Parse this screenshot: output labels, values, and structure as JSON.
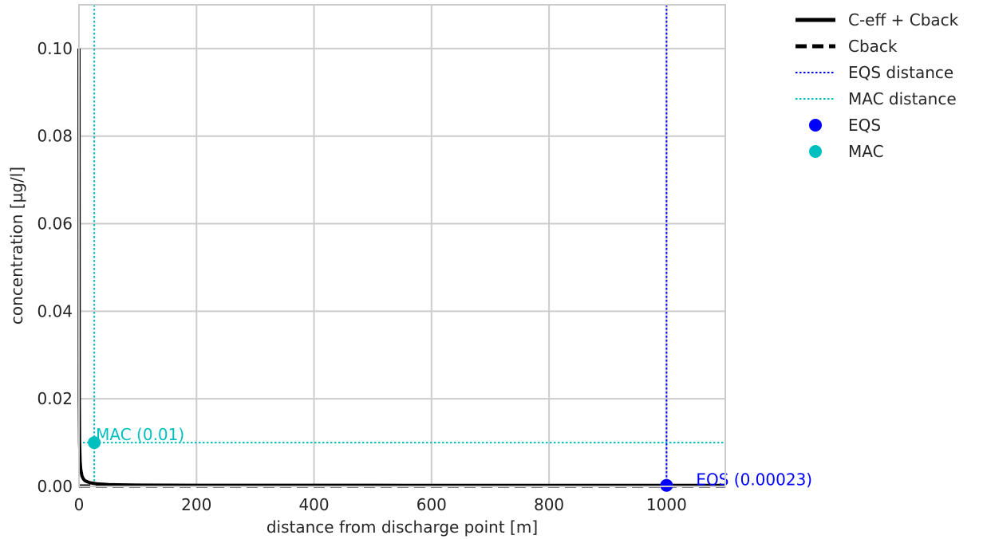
{
  "chart_data": {
    "type": "line",
    "title": "",
    "xlabel": "distance from discharge point [m]",
    "ylabel": "concentration [µg/l]",
    "xlim": [
      0,
      1100
    ],
    "ylim": [
      0,
      0.11
    ],
    "xticks": [
      0,
      200,
      400,
      600,
      800,
      1000
    ],
    "yticks": [
      0.0,
      0.02,
      0.04,
      0.06,
      0.08,
      0.1
    ],
    "xtick_labels": [
      "0",
      "200",
      "400",
      "600",
      "800",
      "1000"
    ],
    "ytick_labels": [
      "0.00",
      "0.02",
      "0.04",
      "0.06",
      "0.08",
      "0.10"
    ],
    "grid": true,
    "legend_position": "outside-top-right",
    "series": [
      {
        "name": "C-eff + Cback",
        "style": "solid",
        "color": "#000000",
        "x": [
          0,
          0.5,
          1,
          2,
          3,
          5,
          7,
          10,
          15,
          20,
          30,
          50,
          75,
          100,
          150,
          200,
          300,
          400,
          500,
          600,
          700,
          800,
          900,
          1000,
          1100
        ],
        "y": [
          0.1,
          0.02,
          0.01,
          0.0055,
          0.0039,
          0.0024,
          0.0018,
          0.0013,
          0.001,
          0.0008,
          0.0006,
          0.0004,
          0.00035,
          0.0003,
          0.00028,
          0.00026,
          0.00025,
          0.00024,
          0.00024,
          0.00023,
          0.00023,
          0.00023,
          0.00023,
          0.00023,
          0.00023
        ]
      },
      {
        "name": "Cback",
        "style": "dashed",
        "color": "#000000",
        "x": [
          0,
          1100
        ],
        "y": [
          0.0001,
          0.0001
        ]
      }
    ],
    "reference_lines": [
      {
        "name": "EQS distance",
        "orientation": "vertical",
        "x": 1000,
        "color": "#0000ff",
        "style": "dotted"
      },
      {
        "name": "MAC distance",
        "orientation": "vertical",
        "x": 26,
        "color": "#00bfbf",
        "style": "dotted"
      },
      {
        "name": "MAC level",
        "orientation": "horizontal",
        "y": 0.01,
        "color": "#00bfbf",
        "style": "dotted"
      }
    ],
    "points": [
      {
        "name": "EQS",
        "x": 1000,
        "y": 0.00023,
        "color": "#0000ff",
        "label": "EQS (0.00023)"
      },
      {
        "name": "MAC",
        "x": 26,
        "y": 0.01,
        "color": "#00bfbf",
        "label": "MAC (0.01)"
      }
    ],
    "legend": [
      {
        "label": "C-eff + Cback",
        "kind": "line-solid",
        "color": "#000000"
      },
      {
        "label": "Cback",
        "kind": "line-dashed",
        "color": "#000000"
      },
      {
        "label": "EQS distance",
        "kind": "line-dotted",
        "color": "#0000ff"
      },
      {
        "label": "MAC distance",
        "kind": "line-dotted",
        "color": "#00bfbf"
      },
      {
        "label": "EQS",
        "kind": "marker",
        "color": "#0000ff"
      },
      {
        "label": "MAC",
        "kind": "marker",
        "color": "#00bfbf"
      }
    ]
  }
}
